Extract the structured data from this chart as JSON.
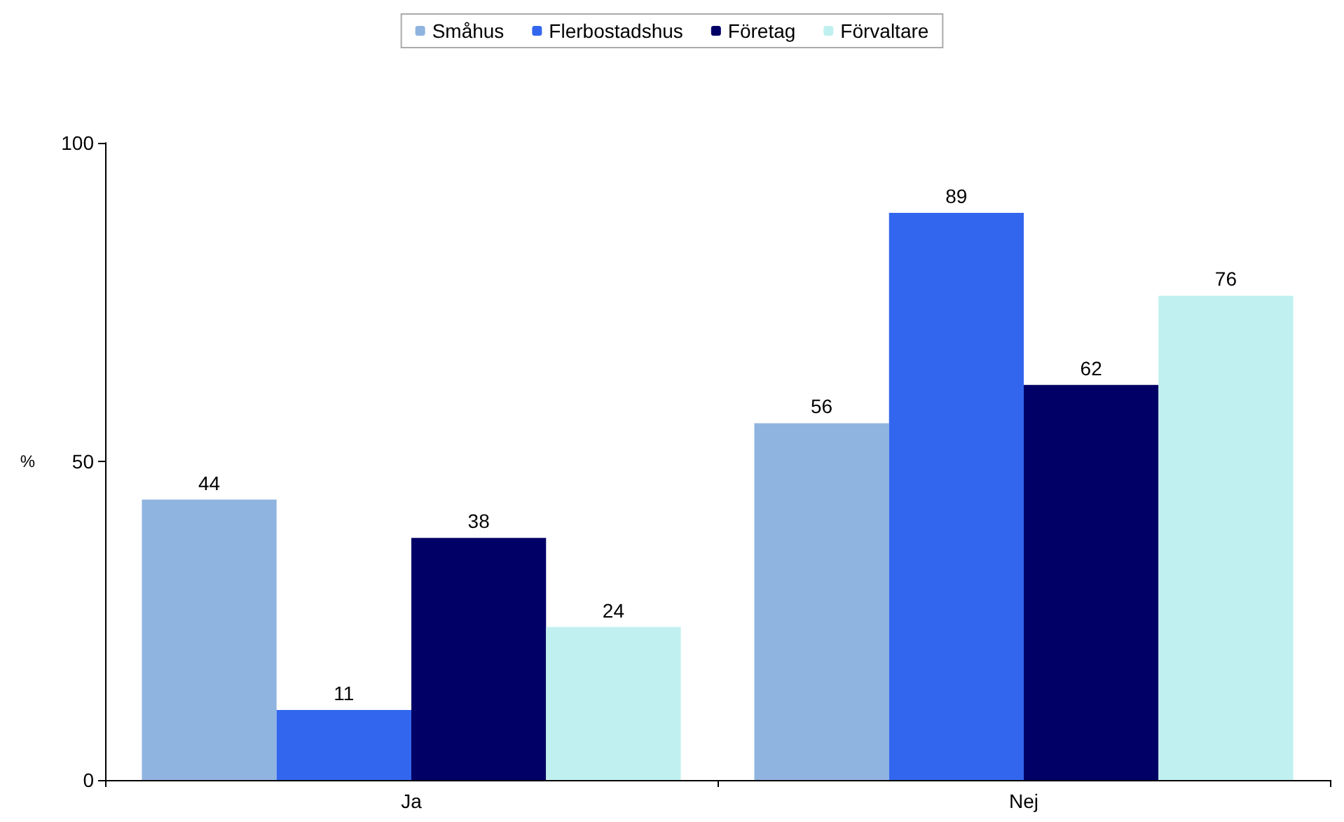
{
  "chart_data": {
    "type": "bar",
    "ylabel": "%",
    "categories": [
      "Ja",
      "Nej"
    ],
    "series": [
      {
        "name": "Småhus",
        "color": "#8fb4e0",
        "values": [
          44,
          56
        ]
      },
      {
        "name": "Flerbostadshus",
        "color": "#3366ee",
        "values": [
          11,
          89
        ]
      },
      {
        "name": "Företag",
        "color": "#000066",
        "values": [
          38,
          62
        ]
      },
      {
        "name": "Förvaltare",
        "color": "#c0f0f0",
        "values": [
          24,
          76
        ]
      }
    ],
    "ylim": [
      0,
      100
    ],
    "yticks": [
      0,
      50,
      100
    ],
    "grid": false,
    "legend": "top",
    "data_labels": true
  }
}
